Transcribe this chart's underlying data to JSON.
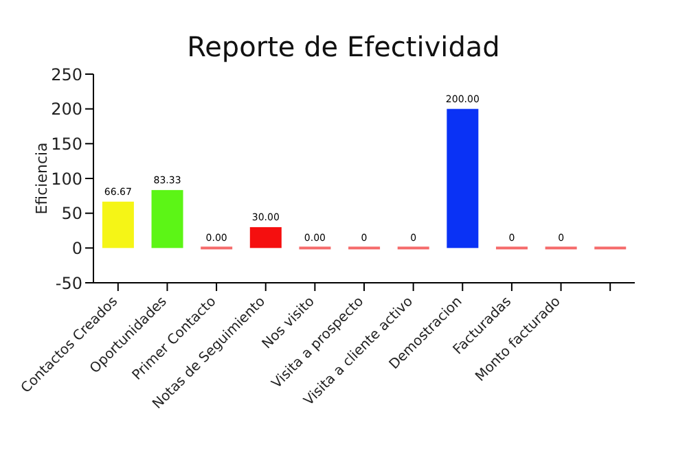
{
  "chart_data": {
    "type": "bar",
    "title": "Reporte de Efectividad",
    "ylabel": "Eficiencia",
    "categories": [
      "Contactos Creados",
      "Oportunidades",
      "Primer Contacto",
      "Notas de Seguimiento",
      "Nos visito",
      "Visita a prospecto",
      "Visita a cliente activo",
      "Demostracion",
      "Facturadas",
      "Monto facturado",
      null
    ],
    "values": [
      66.67,
      83.33,
      0,
      30,
      0,
      0,
      0,
      200,
      0,
      0,
      0
    ],
    "colors": [
      "#f5f516",
      "#5cf516",
      "#f56b6b",
      "#f50f0f",
      "#f56b6b",
      "#f56b6b",
      "#f56b6b",
      "#0a32f5",
      "#f56b6b",
      "#f56b6b",
      "#f56b6b"
    ],
    "value_labels": [
      "66.67",
      "83.33",
      "0.00",
      "30.00",
      "0.00",
      "0",
      "0",
      "200.00",
      "0",
      "0",
      null
    ],
    "ylim": [
      -50,
      250
    ],
    "yticks": [
      -50,
      0,
      50,
      100,
      150,
      200,
      250
    ],
    "grid": false
  }
}
